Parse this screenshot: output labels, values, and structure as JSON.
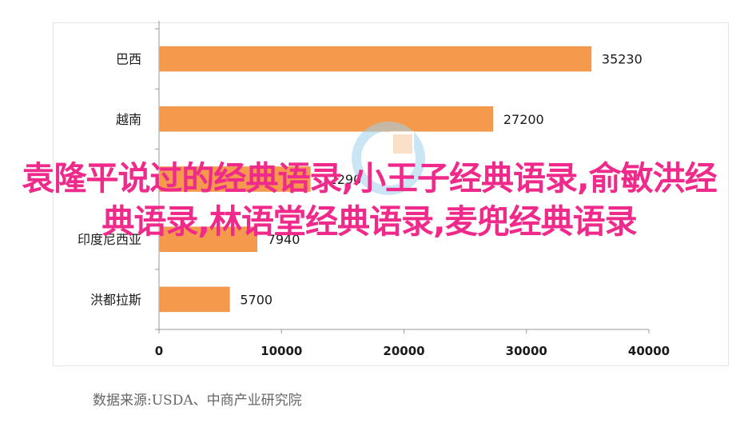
{
  "chart_data": {
    "type": "bar",
    "orientation": "horizontal",
    "categories": [
      "巴西",
      "越南",
      "",
      "印度尼西亚",
      "洪都拉斯"
    ],
    "values": [
      35230,
      27200,
      12290,
      7940,
      5700
    ],
    "value_labels": [
      "35230",
      "27200",
      "12290",
      "7940",
      "5700"
    ],
    "xlim": [
      0,
      40000
    ],
    "x_ticks": [
      "0",
      "10000",
      "20000",
      "30000",
      "40000"
    ],
    "bar_color": "#f59a4c",
    "grid": false
  },
  "source": "数据来源:USDA、中商产业研究院",
  "overlay_title": "袁隆平说过的经典语录,小王子经典语录,俞敏洪经典语录,林语堂经典语录,麦兜经典语录"
}
